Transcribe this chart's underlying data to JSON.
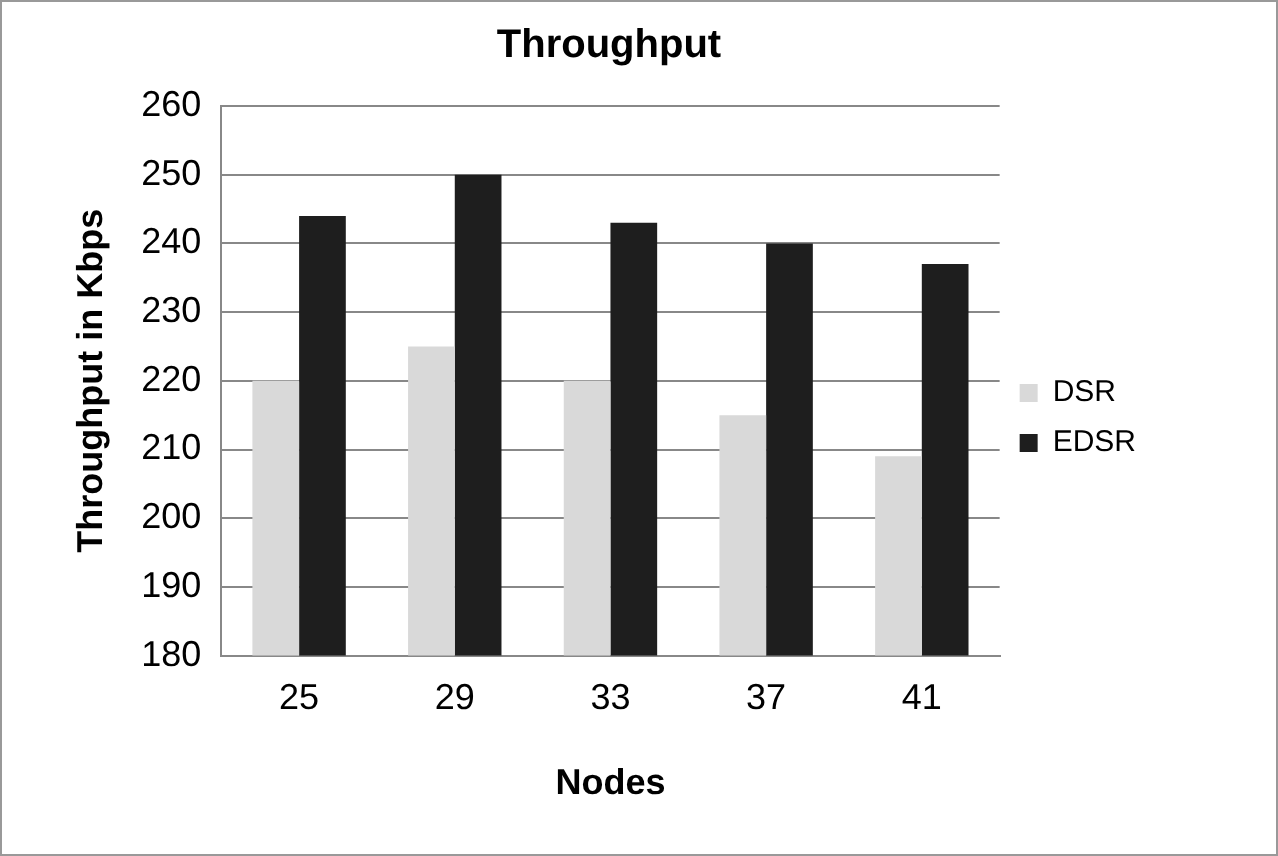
{
  "chart_data": {
    "type": "bar",
    "title": "Throughput",
    "xlabel": "Nodes",
    "ylabel": "Throughput in Kbps",
    "categories": [
      "25",
      "29",
      "33",
      "37",
      "41"
    ],
    "series": [
      {
        "name": "DSR",
        "color": "#d9d9d9",
        "values": [
          220,
          225,
          220,
          215,
          209
        ]
      },
      {
        "name": "EDSR",
        "color": "#1e1e1e",
        "values": [
          244,
          250,
          243,
          240,
          237
        ]
      }
    ],
    "ylim": [
      180,
      260
    ],
    "yticks": [
      180,
      190,
      200,
      210,
      220,
      230,
      240,
      250,
      260
    ],
    "grid": "y",
    "legend": "right"
  }
}
